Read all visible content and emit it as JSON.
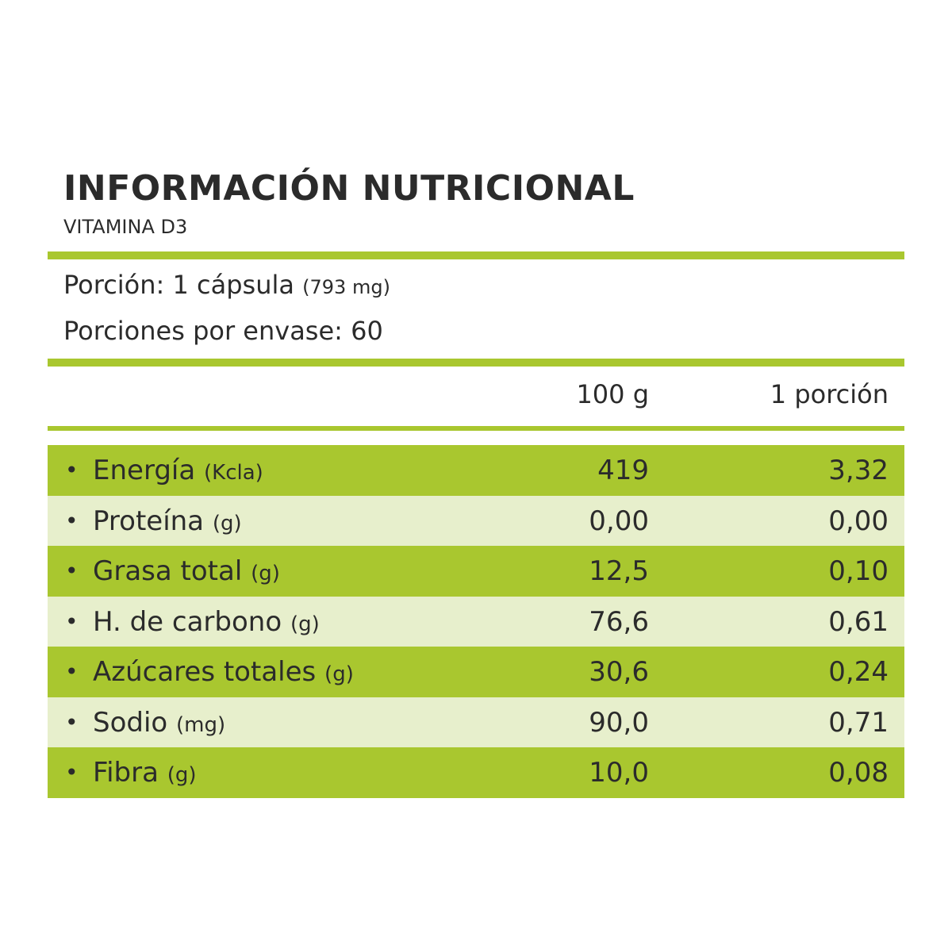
{
  "header": {
    "title": "INFORMACIÓN NUTRICIONAL",
    "subtitle": "VITAMINA D3"
  },
  "serving": {
    "size_label": "Porción:",
    "size_value": "1 cápsula",
    "size_weight": "(793 mg)",
    "per_container_label": "Porciones por envase:",
    "per_container_value": "60"
  },
  "table": {
    "columns": [
      "100 g",
      "1 porción"
    ],
    "rows": [
      {
        "bullet": "•",
        "name": "Energía",
        "unit": "(Kcla)",
        "per_100g": "419",
        "per_portion": "3,32"
      },
      {
        "bullet": "•",
        "name": "Proteína",
        "unit": "(g)",
        "per_100g": "0,00",
        "per_portion": "0,00"
      },
      {
        "bullet": "•",
        "name": "Grasa total",
        "unit": "(g)",
        "per_100g": "12,5",
        "per_portion": "0,10"
      },
      {
        "bullet": "•",
        "name": "H. de carbono",
        "unit": "(g)",
        "per_100g": "76,6",
        "per_portion": "0,61"
      },
      {
        "bullet": "•",
        "name": "Azúcares totales",
        "unit": "(g)",
        "per_100g": "30,6",
        "per_portion": "0,24"
      },
      {
        "bullet": "•",
        "name": "Sodio",
        "unit": "(mg)",
        "per_100g": "90,0",
        "per_portion": "0,71"
      },
      {
        "bullet": "•",
        "name": "Fibra",
        "unit": "(g)",
        "per_100g": "10,0",
        "per_portion": "0,08"
      }
    ]
  },
  "colors": {
    "accent_green": "#a9c72f",
    "light_green": "#e7efcc",
    "text": "#2b2b2b"
  }
}
